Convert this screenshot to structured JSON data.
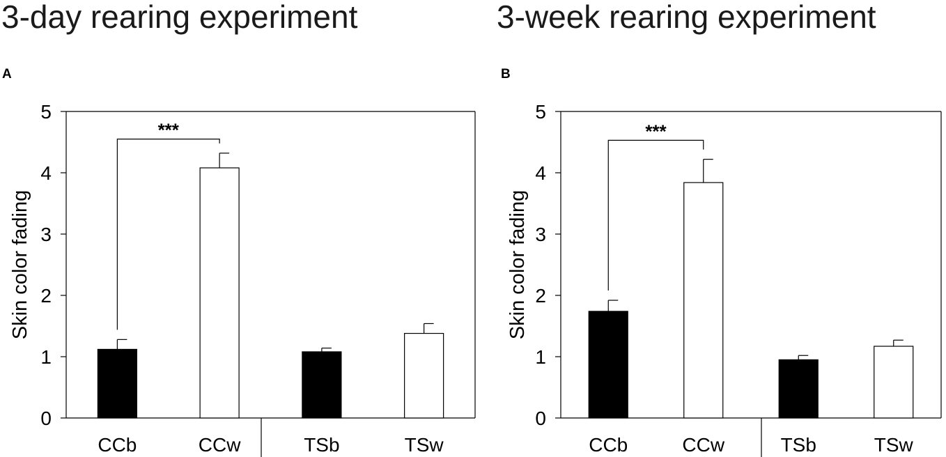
{
  "chart_data": [
    {
      "type": "bar",
      "panel": "A",
      "title": "3-day rearing experiment",
      "ylabel": "Skin color fading",
      "xlabel": "",
      "ylim": [
        0,
        5
      ],
      "yticks": [
        "0",
        "1",
        "2",
        "3",
        "4",
        "5"
      ],
      "categories": [
        "CCb",
        "CCw",
        "TSb",
        "TSw"
      ],
      "values": [
        1.12,
        4.08,
        1.08,
        1.38
      ],
      "errors": [
        0.16,
        0.24,
        0.06,
        0.16
      ],
      "bar_colors": [
        "#000000",
        "#ffffff",
        "#000000",
        "#ffffff"
      ],
      "significance": {
        "from": 0,
        "to": 1,
        "label": "***",
        "level": 4.55
      },
      "group_divider_after": 1
    },
    {
      "type": "bar",
      "panel": "B",
      "title": "3-week rearing experiment",
      "ylabel": "Skin color fading",
      "xlabel": "",
      "ylim": [
        0,
        5
      ],
      "yticks": [
        "0",
        "1",
        "2",
        "3",
        "4",
        "5"
      ],
      "categories": [
        "CCb",
        "CCw",
        "TSb",
        "TSw"
      ],
      "values": [
        1.74,
        3.84,
        0.95,
        1.17
      ],
      "errors": [
        0.18,
        0.38,
        0.07,
        0.1
      ],
      "bar_colors": [
        "#000000",
        "#ffffff",
        "#000000",
        "#ffffff"
      ],
      "significance": {
        "from": 0,
        "to": 1,
        "label": "***",
        "level": 4.53
      },
      "group_divider_after": 1
    }
  ]
}
